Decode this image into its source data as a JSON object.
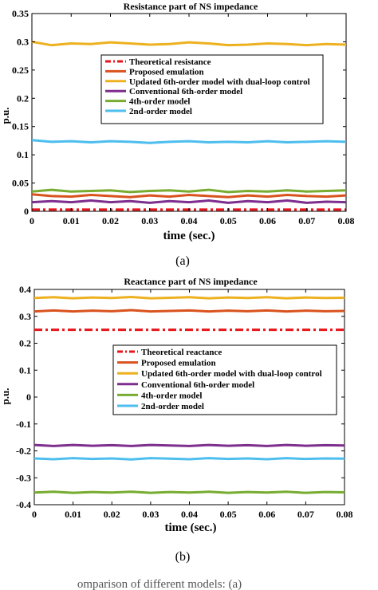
{
  "chart_data": [
    {
      "type": "line",
      "title": "Resistance part of NS impedance",
      "xlabel": "time (sec.)",
      "ylabel": "p.u.",
      "xlim": [
        0,
        0.08
      ],
      "ylim": [
        0,
        0.35
      ],
      "xticks": [
        "0",
        "0.01",
        "0.02",
        "0.03",
        "0.04",
        "0.05",
        "0.06",
        "0.07",
        "0.08"
      ],
      "yticks": [
        "0",
        "0.05",
        "0.1",
        "0.15",
        "0.2",
        "0.25",
        "0.3",
        "0.35"
      ],
      "xtick_values": [
        0,
        0.01,
        0.02,
        0.03,
        0.04,
        0.05,
        0.06,
        0.07,
        0.08
      ],
      "ytick_values": [
        0,
        0.05,
        0.1,
        0.15,
        0.2,
        0.25,
        0.3,
        0.35
      ],
      "grid": false,
      "legend_position": "upper-right",
      "caption": "(a)",
      "x": [
        0,
        0.005,
        0.01,
        0.015,
        0.02,
        0.025,
        0.03,
        0.035,
        0.04,
        0.045,
        0.05,
        0.055,
        0.06,
        0.065,
        0.07,
        0.075,
        0.08
      ],
      "series": [
        {
          "name": "Theoretical resistance",
          "color": "#e8141b",
          "dash": "dashdot",
          "values": [
            0.003,
            0.003,
            0.003,
            0.003,
            0.003,
            0.003,
            0.003,
            0.003,
            0.003,
            0.003,
            0.003,
            0.003,
            0.003,
            0.003,
            0.003,
            0.003,
            0.003
          ]
        },
        {
          "name": "Proposed emulation",
          "color": "#d9531e",
          "values": [
            0.03,
            0.027,
            0.026,
            0.029,
            0.027,
            0.025,
            0.028,
            0.026,
            0.029,
            0.027,
            0.025,
            0.028,
            0.026,
            0.029,
            0.027,
            0.026,
            0.028
          ]
        },
        {
          "name": "Updated 6th-order model with dual-loop control",
          "color": "#edb120",
          "values": [
            0.3,
            0.294,
            0.297,
            0.296,
            0.299,
            0.297,
            0.295,
            0.296,
            0.299,
            0.297,
            0.294,
            0.295,
            0.297,
            0.296,
            0.294,
            0.296,
            0.295
          ]
        },
        {
          "name": "Conventional 6th-order model",
          "color": "#7e2f8e",
          "values": [
            0.016,
            0.018,
            0.016,
            0.019,
            0.016,
            0.018,
            0.015,
            0.018,
            0.016,
            0.019,
            0.015,
            0.018,
            0.016,
            0.019,
            0.015,
            0.017,
            0.016
          ]
        },
        {
          "name": "4th-order model",
          "color": "#77ac30",
          "values": [
            0.035,
            0.038,
            0.035,
            0.036,
            0.037,
            0.034,
            0.036,
            0.037,
            0.035,
            0.038,
            0.034,
            0.036,
            0.035,
            0.037,
            0.035,
            0.036,
            0.037
          ]
        },
        {
          "name": "2nd-order model",
          "color": "#4dbeee",
          "values": [
            0.126,
            0.123,
            0.124,
            0.122,
            0.124,
            0.123,
            0.121,
            0.123,
            0.124,
            0.122,
            0.123,
            0.122,
            0.124,
            0.122,
            0.123,
            0.124,
            0.123
          ]
        }
      ]
    },
    {
      "type": "line",
      "title": "Reactance part of NS impedance",
      "xlabel": "time (sec.)",
      "ylabel": "p.u.",
      "xlim": [
        0,
        0.08
      ],
      "ylim": [
        -0.4,
        0.4
      ],
      "xticks": [
        "0",
        "0.01",
        "0.02",
        "0.03",
        "0.04",
        "0.05",
        "0.06",
        "0.07",
        "0.08"
      ],
      "yticks": [
        "-0.4",
        "-0.3",
        "-0.2",
        "-0.1",
        "0",
        "0.1",
        "0.2",
        "0.3",
        "0.4"
      ],
      "xtick_values": [
        0,
        0.01,
        0.02,
        0.03,
        0.04,
        0.05,
        0.06,
        0.07,
        0.08
      ],
      "ytick_values": [
        -0.4,
        -0.3,
        -0.2,
        -0.1,
        0,
        0.1,
        0.2,
        0.3,
        0.4
      ],
      "grid": false,
      "legend_position": "center-right",
      "caption": "(b)",
      "x": [
        0,
        0.005,
        0.01,
        0.015,
        0.02,
        0.025,
        0.03,
        0.035,
        0.04,
        0.045,
        0.05,
        0.055,
        0.06,
        0.065,
        0.07,
        0.075,
        0.08
      ],
      "series": [
        {
          "name": "Theoretical reactance",
          "color": "#e8141b",
          "dash": "dashdot",
          "values": [
            0.25,
            0.25,
            0.25,
            0.25,
            0.25,
            0.25,
            0.25,
            0.25,
            0.25,
            0.25,
            0.25,
            0.25,
            0.25,
            0.25,
            0.25,
            0.25,
            0.25
          ]
        },
        {
          "name": "Proposed emulation",
          "color": "#d9531e",
          "values": [
            0.318,
            0.322,
            0.318,
            0.321,
            0.319,
            0.323,
            0.318,
            0.32,
            0.322,
            0.318,
            0.321,
            0.319,
            0.322,
            0.318,
            0.321,
            0.319,
            0.32
          ]
        },
        {
          "name": "Updated 6th-order model with dual-loop control",
          "color": "#edb120",
          "values": [
            0.368,
            0.371,
            0.367,
            0.37,
            0.368,
            0.372,
            0.367,
            0.369,
            0.371,
            0.367,
            0.37,
            0.368,
            0.371,
            0.367,
            0.37,
            0.368,
            0.369
          ]
        },
        {
          "name": "Conventional 6th-order model",
          "color": "#7e2f8e",
          "values": [
            -0.178,
            -0.182,
            -0.178,
            -0.181,
            -0.179,
            -0.182,
            -0.178,
            -0.18,
            -0.182,
            -0.178,
            -0.181,
            -0.179,
            -0.182,
            -0.178,
            -0.181,
            -0.179,
            -0.18
          ]
        },
        {
          "name": "4th-order model",
          "color": "#77ac30",
          "values": [
            -0.355,
            -0.352,
            -0.356,
            -0.353,
            -0.355,
            -0.352,
            -0.356,
            -0.353,
            -0.355,
            -0.352,
            -0.356,
            -0.353,
            -0.355,
            -0.352,
            -0.356,
            -0.353,
            -0.354
          ]
        },
        {
          "name": "2nd-order model",
          "color": "#4dbeee",
          "values": [
            -0.228,
            -0.231,
            -0.227,
            -0.23,
            -0.228,
            -0.232,
            -0.227,
            -0.229,
            -0.231,
            -0.227,
            -0.23,
            -0.228,
            -0.231,
            -0.227,
            -0.23,
            -0.228,
            -0.229
          ]
        }
      ]
    }
  ],
  "footer_text": "omparison of different models: (a)"
}
